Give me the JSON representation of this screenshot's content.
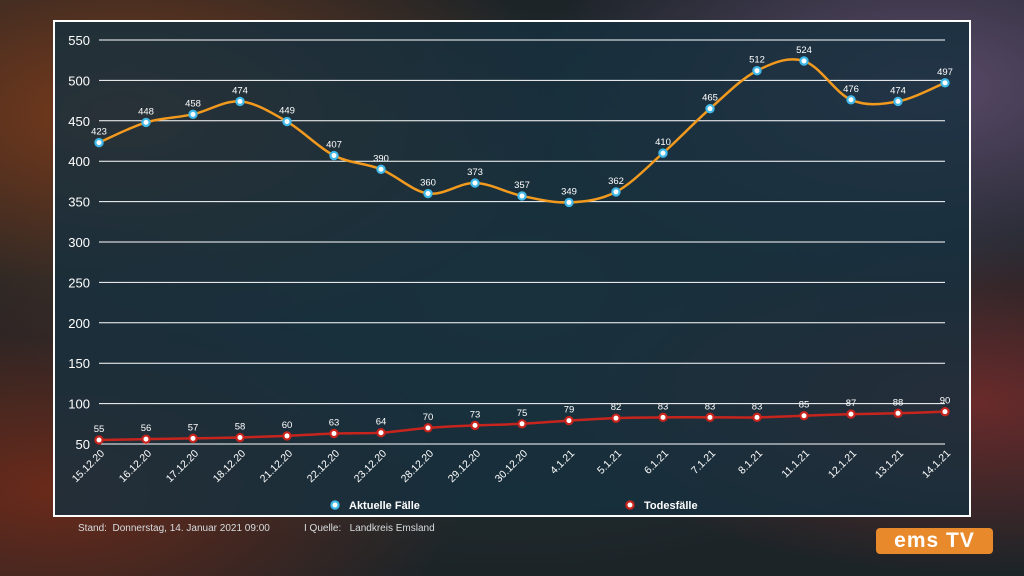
{
  "chart_data": {
    "type": "line",
    "categories": [
      "15.12.20",
      "16.12.20",
      "17.12.20",
      "18.12.20",
      "21.12.20",
      "22.12.20",
      "23.12.20",
      "28.12.20",
      "29.12.20",
      "30.12.20",
      "4.1.21",
      "5.1.21",
      "6.1.21",
      "7.1.21",
      "8.1.21",
      "11.1.21",
      "12.1.21",
      "13.1.21",
      "14.1.21"
    ],
    "series": [
      {
        "name": "Aktuelle Fälle",
        "color": "#f29a1e",
        "marker": "#3fb8e8",
        "values": [
          423,
          448,
          458,
          474,
          449,
          407,
          390,
          360,
          373,
          357,
          349,
          362,
          410,
          465,
          512,
          524,
          476,
          474,
          497
        ]
      },
      {
        "name": "Todesfälle",
        "color": "#c8241e",
        "marker": "#c8241e",
        "values": [
          55,
          56,
          57,
          58,
          60,
          63,
          64,
          70,
          73,
          75,
          79,
          82,
          83,
          83,
          83,
          85,
          87,
          88,
          90
        ]
      }
    ],
    "yticks": [
      50,
      100,
      150,
      200,
      250,
      300,
      350,
      400,
      450,
      500,
      550
    ],
    "ylim": [
      50,
      550
    ],
    "grid": true,
    "legend": "bottom"
  },
  "footer": {
    "stand_label": "Stand:",
    "stand_value": "Donnerstag, 14. Januar 2021 09:00",
    "quelle_label": "I Quelle:",
    "quelle_value": "Landkreis Emsland"
  },
  "logo": {
    "text": "ems TV"
  }
}
